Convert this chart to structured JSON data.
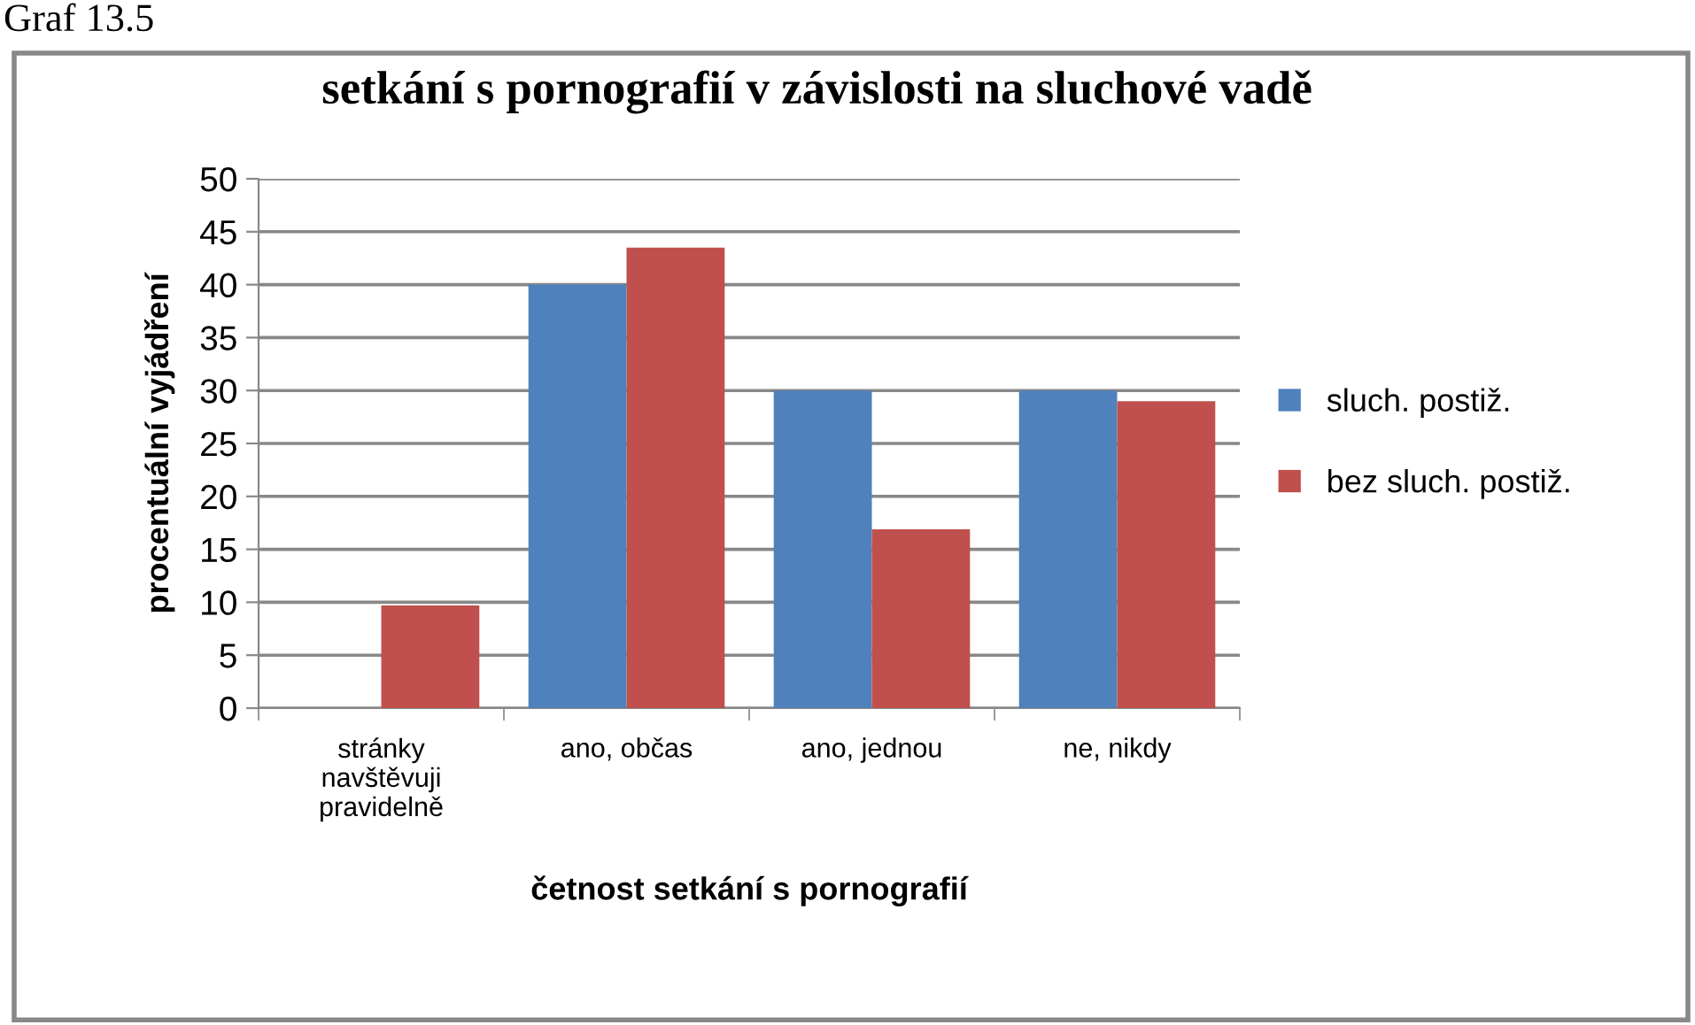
{
  "chart_data": {
    "type": "bar",
    "title": "setkání s pornografií v závislosti na sluchové vadě",
    "xlabel": "četnost setkání s pornografií",
    "ylabel": "procentuální vyjádření",
    "annotations": [
      "Graf 13.5"
    ],
    "categories": [
      "stránky\nnavštěvuji\npravidelně",
      "ano, občas",
      "ano, jednou",
      "ne, nikdy"
    ],
    "series": [
      {
        "name": "sluch. postiž.",
        "color": "#4f81bd",
        "values": [
          0,
          40,
          30,
          30
        ]
      },
      {
        "name": "bez sluch. postiž.",
        "color": "#c0504d",
        "values": [
          9.7,
          43.5,
          16.9,
          29
        ]
      }
    ],
    "ylim": [
      0,
      50
    ],
    "yticks": [
      0,
      5,
      10,
      15,
      20,
      25,
      30,
      35,
      40,
      45,
      50
    ],
    "grid": "y",
    "legend": "right"
  }
}
